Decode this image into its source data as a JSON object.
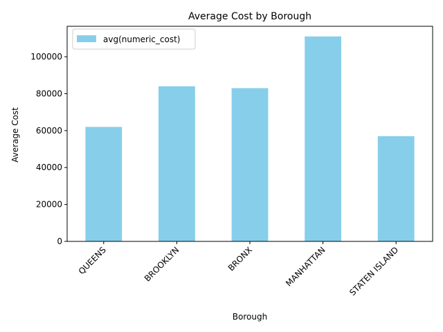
{
  "chart_data": {
    "type": "bar",
    "title": "Average Cost by Borough",
    "xlabel": "Borough",
    "ylabel": "Average Cost",
    "categories": [
      "QUEENS",
      "BROOKLYN",
      "BRONX",
      "MANHATTAN",
      "STATEN ISLAND"
    ],
    "series": [
      {
        "name": "avg(numeric_cost)",
        "color": "#87CEEB",
        "values": [
          62000,
          84000,
          83000,
          111000,
          57000
        ]
      }
    ],
    "ylim": [
      0,
      116500
    ],
    "yticks": [
      0,
      20000,
      40000,
      60000,
      80000,
      100000
    ],
    "ytick_labels": [
      "0",
      "20000",
      "40000",
      "60000",
      "80000",
      "100000"
    ],
    "grid": false,
    "legend_position": "top-left"
  }
}
